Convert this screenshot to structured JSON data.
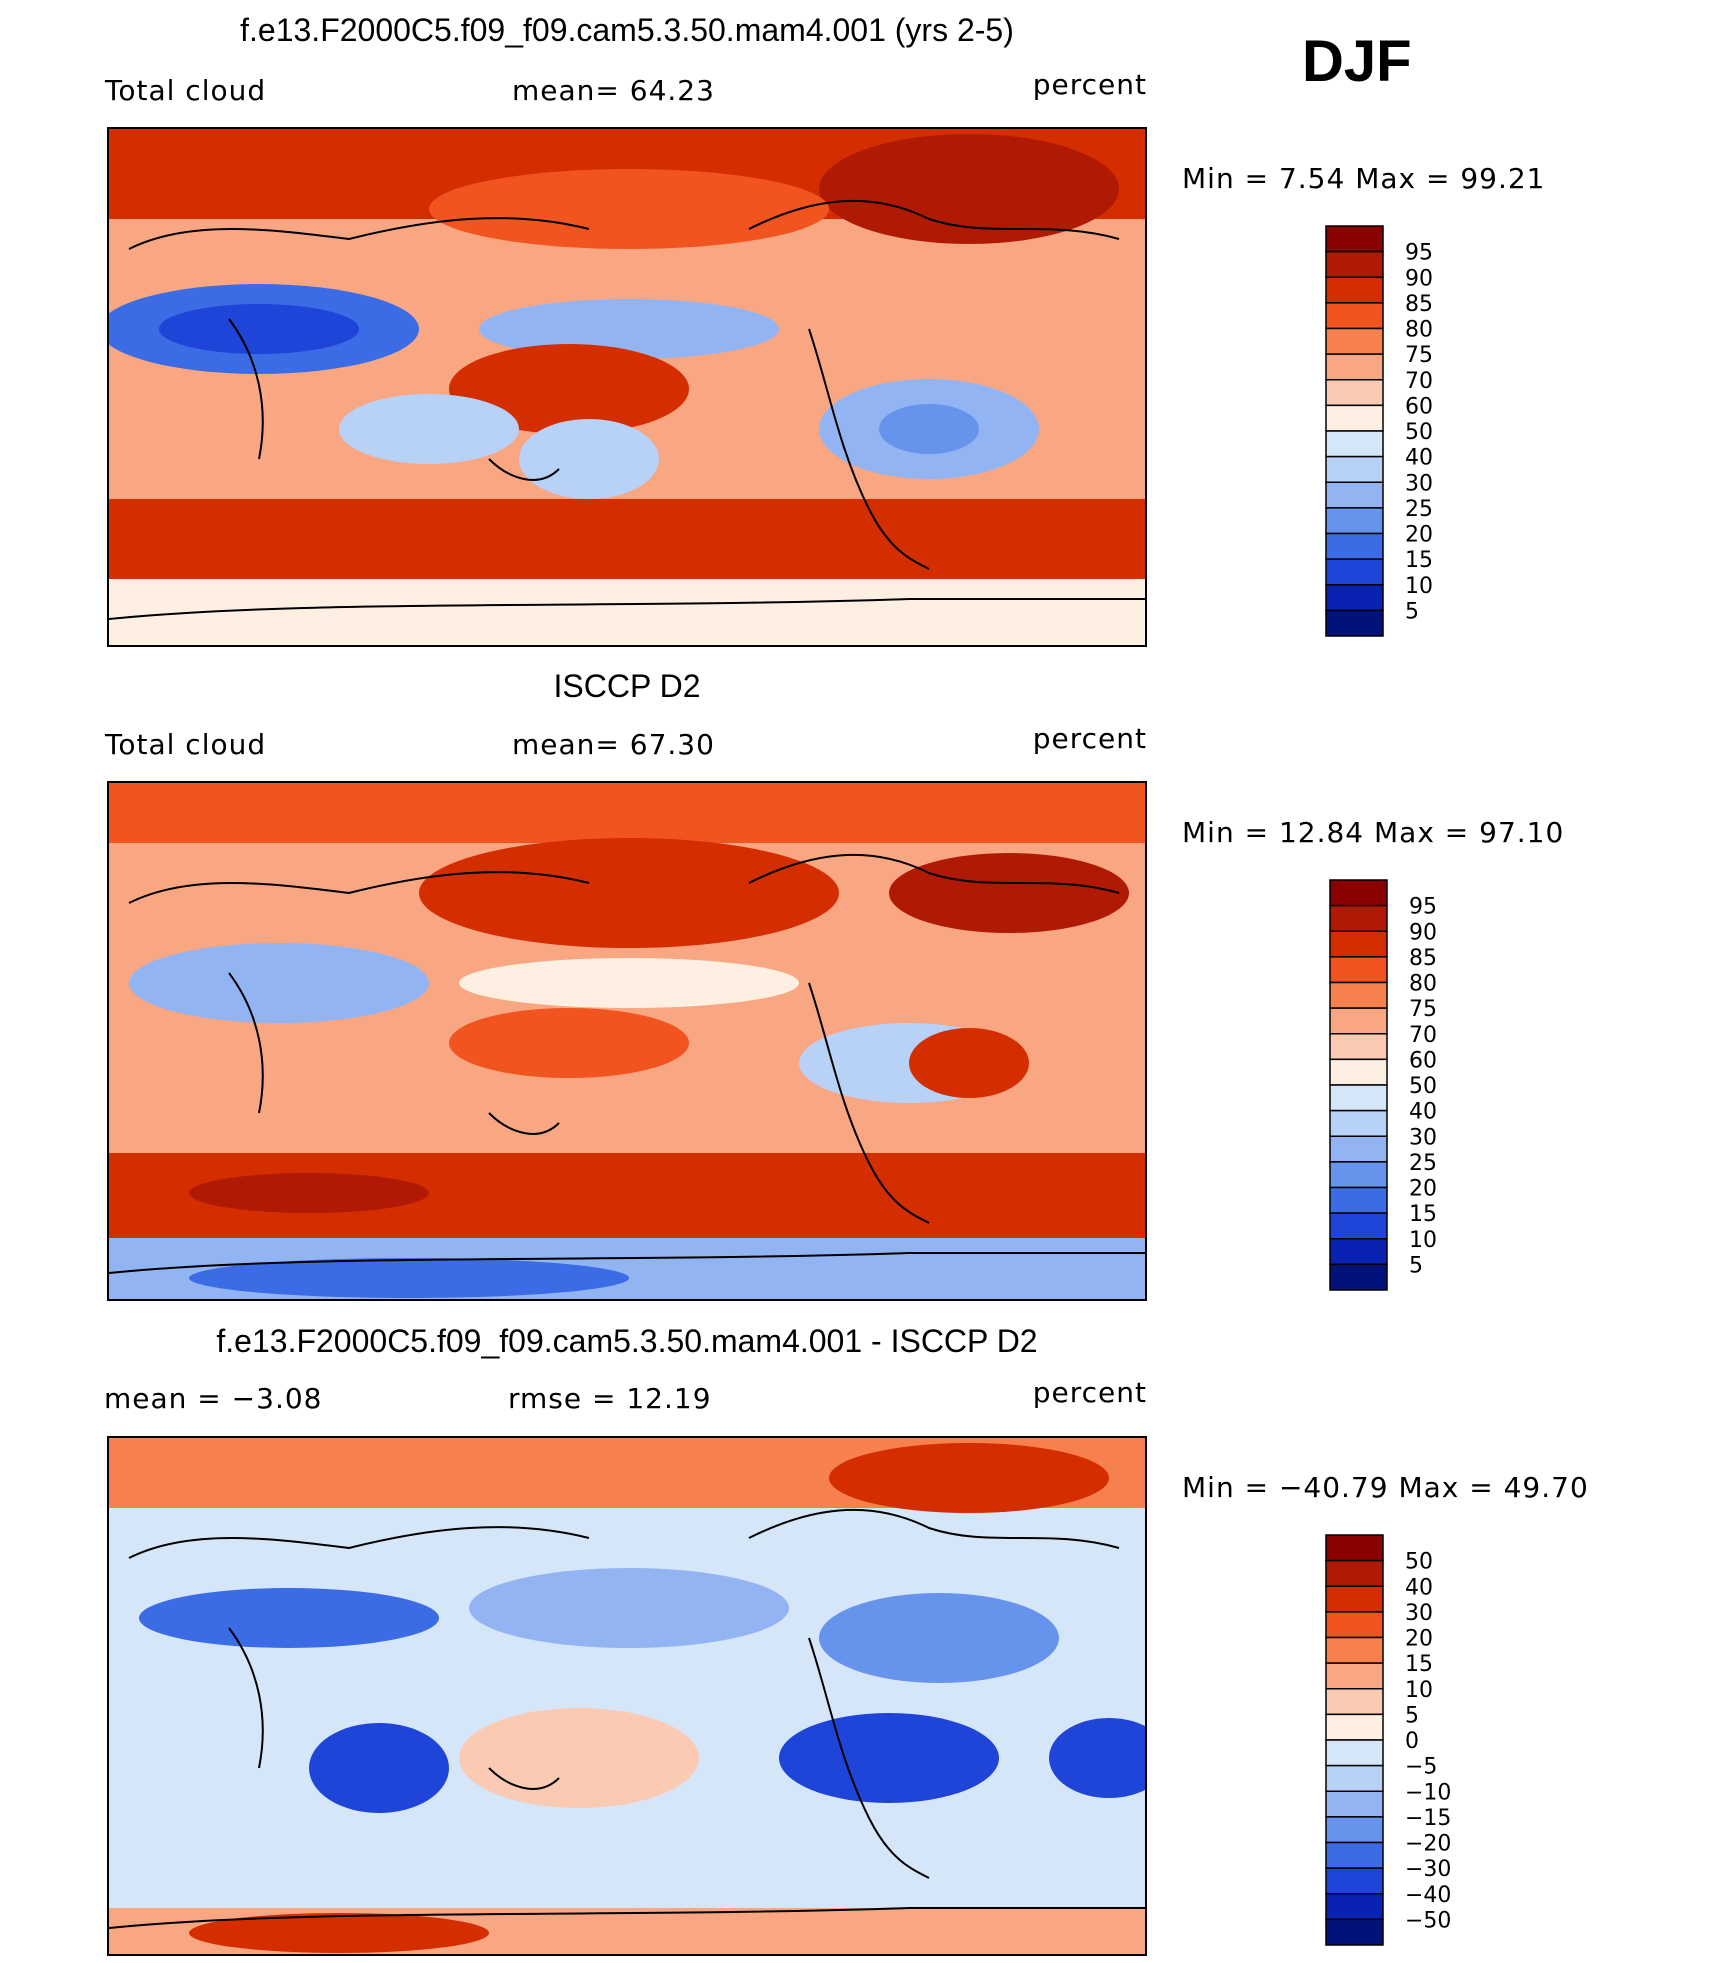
{
  "season": "DJF",
  "panels": [
    {
      "title": "f.e13.F2000C5.f09_f09.cam5.3.50.mam4.001 (yrs 2-5)",
      "left_label": "Total cloud",
      "mid_label": "mean=   64.23",
      "units": "percent",
      "minmax": "Min  =    7.54  Max  =   99.21",
      "colorbar_labels": [
        "95",
        "90",
        "85",
        "80",
        "75",
        "70",
        "60",
        "50",
        "40",
        "30",
        "25",
        "20",
        "15",
        "10",
        "5"
      ],
      "colors": [
        "#8b0000",
        "#b01a05",
        "#d42d00",
        "#f2541f",
        "#f7804f",
        "#f9a683",
        "#fbcab2",
        "#fdf0e2",
        "#d6e6f9",
        "#b8d1f7",
        "#93b4f3",
        "#6693ec",
        "#3b6ce6",
        "#1f44d8",
        "#0a22b2",
        "#03117a"
      ]
    },
    {
      "title": "ISCCP D2",
      "left_label": "Total cloud",
      "mid_label": "mean=   67.30",
      "units": "percent",
      "minmax": "Min  =   12.84  Max  =   97.10",
      "colorbar_labels": [
        "95",
        "90",
        "85",
        "80",
        "75",
        "70",
        "60",
        "50",
        "40",
        "30",
        "25",
        "20",
        "15",
        "10",
        "5"
      ],
      "colors": [
        "#8b0000",
        "#b01a05",
        "#d42d00",
        "#f2541f",
        "#f7804f",
        "#f9a683",
        "#fbcab2",
        "#fdf0e2",
        "#d6e6f9",
        "#b8d1f7",
        "#93b4f3",
        "#6693ec",
        "#3b6ce6",
        "#1f44d8",
        "#0a22b2",
        "#03117a"
      ]
    },
    {
      "title": "f.e13.F2000C5.f09_f09.cam5.3.50.mam4.001 - ISCCP D2",
      "left_label": "mean  =    −3.08",
      "mid_label": "rmse  =    12.19",
      "units": "percent",
      "minmax": "Min  = −40.79  Max  =   49.70",
      "colorbar_labels": [
        "50",
        "40",
        "30",
        "20",
        "15",
        "10",
        "5",
        "0",
        "−5",
        "−10",
        "−15",
        "−20",
        "−30",
        "−40",
        "−50"
      ],
      "colors": [
        "#8b0000",
        "#b01a05",
        "#d42d00",
        "#f2541f",
        "#f7804f",
        "#f9a683",
        "#fbcab2",
        "#fdf0e2",
        "#d6e6f9",
        "#b8d1f7",
        "#93b4f3",
        "#6693ec",
        "#3b6ce6",
        "#1f44d8",
        "#0a22b2",
        "#03117a"
      ]
    }
  ]
}
